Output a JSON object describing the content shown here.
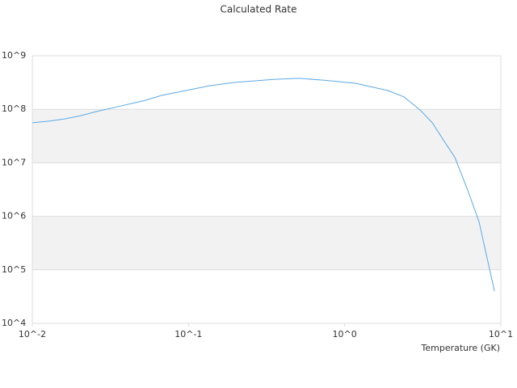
{
  "chart_data": {
    "type": "line",
    "title": "Calculated Rate",
    "x_label": "Temperature (GK)",
    "x": [
      0.01,
      0.0127,
      0.0161,
      0.0204,
      0.0259,
      0.0371,
      0.053,
      0.0673,
      0.0962,
      0.137,
      0.196,
      0.356,
      0.509,
      0.728,
      1.17,
      1.89,
      2.4,
      3.04,
      3.64,
      4.35,
      5.08,
      6.21,
      7.26,
      9.1
    ],
    "values": [
      56000000,
      60000000,
      66000000,
      76000000,
      91000000,
      116000000,
      147000000,
      182000000,
      224000000,
      276000000,
      317000000,
      363000000,
      380000000,
      350000000,
      307000000,
      224000000,
      170000000,
      97000000,
      56000000,
      25000000,
      12600000,
      2800000,
      780000,
      40000
    ],
    "color": "#5aa9e6",
    "xlim": [
      0.01,
      10
    ],
    "ylim": [
      10000,
      1000000000
    ],
    "xlog": true,
    "ylog": true,
    "grid": true,
    "xticks": [
      {
        "value": 0.01,
        "label": "10^-2"
      },
      {
        "value": 0.1,
        "label": "10^-1"
      },
      {
        "value": 1,
        "label": "10^0"
      },
      {
        "value": 10,
        "label": "10^1"
      }
    ],
    "yticks": [
      {
        "value": 10000,
        "label": "10^4"
      },
      {
        "value": 100000,
        "label": "10^5"
      },
      {
        "value": 1000000,
        "label": "10^6"
      },
      {
        "value": 10000000,
        "label": "10^7"
      },
      {
        "value": 100000000,
        "label": "10^8"
      },
      {
        "value": 1000000000,
        "label": "10^9"
      }
    ]
  }
}
